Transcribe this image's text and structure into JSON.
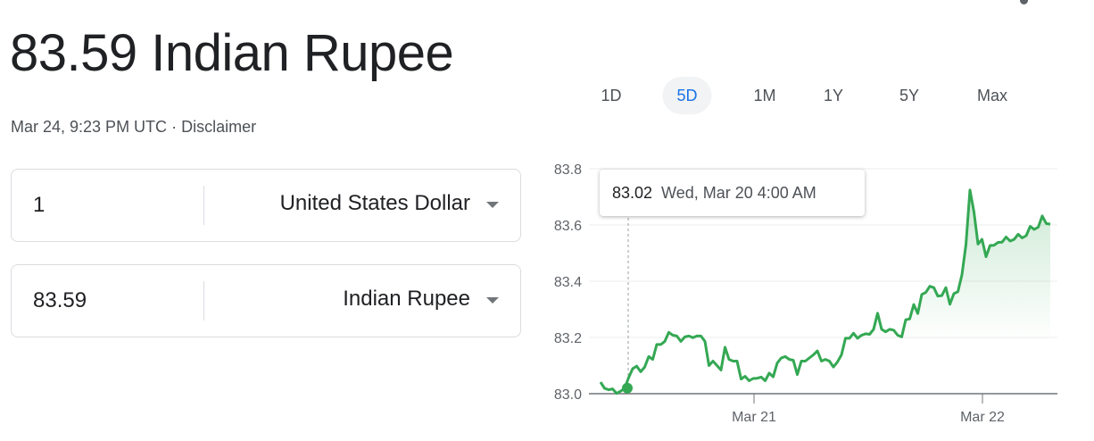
{
  "header": {
    "title": "83.59 Indian Rupee",
    "timestamp": "Mar 24, 9:23 PM UTC",
    "separator": "·",
    "disclaimer": "Disclaimer"
  },
  "converter": [
    {
      "amount": "1",
      "currency": "United States Dollar"
    },
    {
      "amount": "83.59",
      "currency": "Indian Rupee"
    }
  ],
  "range_tabs": [
    {
      "label": "1D"
    },
    {
      "label": "5D",
      "selected": true
    },
    {
      "label": "1M"
    },
    {
      "label": "1Y"
    },
    {
      "label": "5Y"
    },
    {
      "label": "Max"
    }
  ],
  "tooltip": {
    "value": "83.02",
    "time": "Wed, Mar 20 4:00 AM"
  },
  "colors": {
    "line": "#34a853",
    "accent": "#1a73e8"
  },
  "chart_data": {
    "type": "line",
    "ylim": [
      83.0,
      83.8
    ],
    "y_ticks": [
      "83.0",
      "83.2",
      "83.4",
      "83.6",
      "83.8"
    ],
    "x_ticks": [
      "Mar 21",
      "Mar 22"
    ],
    "grid": true,
    "highlight": {
      "value": 83.02,
      "label": "Wed, Mar 20 4:00 AM"
    },
    "values": [
      83.041,
      83.019,
      83.014,
      83.017,
      83.001,
      83.009,
      83.019,
      83.057,
      83.089,
      83.098,
      83.078,
      83.095,
      83.132,
      83.122,
      83.175,
      83.175,
      83.186,
      83.218,
      83.208,
      83.205,
      83.186,
      83.202,
      83.205,
      83.199,
      83.205,
      83.205,
      83.186,
      83.1,
      83.116,
      83.1,
      83.084,
      83.165,
      83.122,
      83.116,
      83.116,
      83.052,
      83.062,
      83.046,
      83.054,
      83.055,
      83.059,
      83.046,
      83.073,
      83.06,
      83.109,
      83.127,
      83.132,
      83.122,
      83.119,
      83.068,
      83.116,
      83.116,
      83.127,
      83.138,
      83.152,
      83.116,
      83.122,
      83.116,
      83.095,
      83.113,
      83.138,
      83.197,
      83.197,
      83.215,
      83.197,
      83.208,
      83.213,
      83.211,
      83.229,
      83.286,
      83.229,
      83.22,
      83.229,
      83.226,
      83.208,
      83.202,
      83.263,
      83.266,
      83.317,
      83.285,
      83.353,
      83.36,
      83.382,
      83.377,
      83.347,
      83.349,
      83.377,
      83.318,
      83.356,
      83.363,
      83.423,
      83.53,
      83.724,
      83.646,
      83.532,
      83.549,
      83.487,
      83.527,
      83.528,
      83.538,
      83.539,
      83.557,
      83.543,
      83.549,
      83.567,
      83.554,
      83.562,
      83.595,
      83.584,
      83.592,
      83.632,
      83.605,
      83.603
    ]
  }
}
